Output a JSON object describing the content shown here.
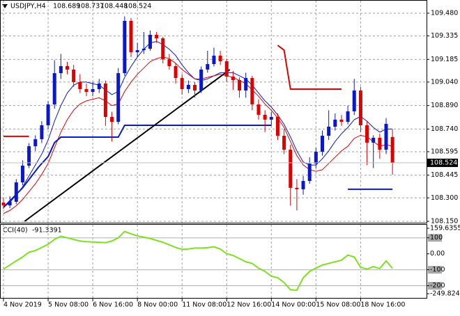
{
  "chart_data": {
    "type": "candlestick",
    "symbol": "USDJPY,H4",
    "up_color": "#0a18c8",
    "down_color": "#e00000",
    "grid": true,
    "ylim": [
      108.15,
      109.48
    ],
    "yticks": [
      {
        "value": 109.48,
        "label": "109.480"
      },
      109.335,
      109.185,
      {
        "value": 109.04,
        "label": "109.040"
      },
      {
        "value": 108.89,
        "label": "108.890"
      },
      {
        "value": 108.74,
        "label": "108.740"
      },
      108.595,
      108.445,
      {
        "value": 108.3,
        "label": "108.300"
      },
      {
        "value": 108.15,
        "label": "108.150"
      }
    ],
    "xticks": [
      {
        "value": 0,
        "label": "4 Nov 2019"
      },
      {
        "value": 7,
        "label": "5 Nov 08:00"
      },
      {
        "value": 14,
        "label": "6 Nov 16:00"
      },
      {
        "value": 21,
        "label": "8 Nov 00:00"
      },
      {
        "value": 28,
        "label": "11 Nov 08:00"
      },
      {
        "value": 35,
        "label": "12 Nov 16:00"
      },
      {
        "value": 42,
        "label": "14 Nov 00:00"
      },
      {
        "value": 49,
        "label": "15 Nov 08:00"
      },
      {
        "value": 56,
        "label": "18 Nov 16:00"
      }
    ],
    "candles": [
      [
        108.27,
        108.3,
        108.23,
        108.252
      ],
      [
        108.252,
        108.31,
        108.235,
        108.275
      ],
      [
        108.275,
        108.42,
        108.26,
        108.399
      ],
      [
        108.399,
        108.54,
        108.38,
        108.506
      ],
      [
        108.506,
        108.65,
        108.49,
        108.63
      ],
      [
        108.63,
        108.7,
        108.6,
        108.675
      ],
      [
        108.675,
        108.79,
        108.65,
        108.764
      ],
      [
        108.764,
        108.92,
        108.74,
        108.897
      ],
      [
        108.897,
        109.18,
        108.87,
        109.097
      ],
      [
        109.097,
        109.22,
        109.06,
        109.142
      ],
      [
        109.142,
        109.17,
        109.09,
        109.12
      ],
      [
        109.12,
        109.15,
        109.01,
        109.04
      ],
      [
        109.04,
        109.09,
        108.97,
        108.995
      ],
      [
        108.995,
        109.03,
        108.95,
        108.977
      ],
      [
        108.977,
        109.04,
        108.95,
        108.995
      ],
      [
        108.995,
        109.06,
        108.97,
        109.031
      ],
      [
        109.031,
        109.05,
        108.76,
        108.817
      ],
      [
        108.817,
        108.85,
        108.66,
        108.786
      ],
      [
        108.786,
        109.13,
        108.77,
        109.097
      ],
      [
        109.097,
        109.46,
        109.08,
        109.431
      ],
      [
        109.431,
        109.45,
        109.2,
        109.231
      ],
      [
        109.231,
        109.29,
        109.2,
        109.244
      ],
      [
        109.244,
        109.36,
        109.22,
        109.253
      ],
      [
        109.253,
        109.37,
        109.24,
        109.342
      ],
      [
        109.342,
        109.36,
        109.29,
        109.32
      ],
      [
        109.32,
        109.33,
        109.16,
        109.186
      ],
      [
        109.186,
        109.22,
        109.12,
        109.142
      ],
      [
        109.142,
        109.16,
        109.03,
        109.066
      ],
      [
        109.066,
        109.09,
        108.96,
        108.995
      ],
      [
        108.995,
        109.05,
        108.97,
        109.022
      ],
      [
        109.022,
        109.04,
        108.94,
        108.986
      ],
      [
        108.986,
        109.14,
        108.97,
        109.12
      ],
      [
        109.12,
        109.24,
        109.1,
        109.155
      ],
      [
        109.155,
        109.26,
        109.14,
        109.209
      ],
      [
        109.209,
        109.24,
        109.15,
        109.173
      ],
      [
        109.173,
        109.19,
        109.04,
        109.075
      ],
      [
        109.075,
        109.11,
        108.99,
        109.053
      ],
      [
        109.053,
        109.07,
        108.94,
        108.986
      ],
      [
        108.986,
        109.1,
        108.94,
        109.066
      ],
      [
        109.066,
        109.08,
        108.86,
        108.897
      ],
      [
        108.897,
        108.93,
        108.8,
        108.831
      ],
      [
        108.831,
        108.86,
        108.72,
        108.8
      ],
      [
        108.8,
        108.85,
        108.76,
        108.817
      ],
      [
        108.817,
        108.84,
        108.67,
        108.697
      ],
      [
        108.697,
        108.74,
        108.58,
        108.608
      ],
      [
        108.608,
        108.64,
        108.25,
        108.364
      ],
      [
        108.364,
        108.42,
        108.22,
        108.355
      ],
      [
        108.355,
        108.44,
        108.32,
        108.408
      ],
      [
        108.408,
        108.56,
        108.39,
        108.519
      ],
      [
        108.519,
        108.62,
        108.49,
        108.595
      ],
      [
        108.595,
        108.73,
        108.57,
        108.697
      ],
      [
        108.697,
        108.86,
        108.67,
        108.755
      ],
      [
        108.755,
        108.84,
        108.73,
        108.8
      ],
      [
        108.8,
        108.83,
        108.76,
        108.786
      ],
      [
        108.786,
        108.89,
        108.77,
        108.853
      ],
      [
        108.853,
        109.06,
        108.83,
        108.986
      ],
      [
        108.986,
        109.01,
        108.72,
        108.764
      ],
      [
        108.764,
        108.79,
        108.51,
        108.653
      ],
      [
        108.653,
        108.7,
        108.49,
        108.684
      ],
      [
        108.684,
        108.71,
        108.55,
        108.608
      ],
      [
        108.608,
        108.81,
        108.58,
        108.773
      ],
      [
        108.689,
        108.737,
        108.448,
        108.524
      ]
    ],
    "lines": [
      {
        "color": "#0a18c8",
        "width": 1,
        "values": [
          108.24,
          108.27,
          108.32,
          108.37,
          108.44,
          108.51,
          108.58,
          108.67,
          108.79,
          108.89,
          108.97,
          109.02,
          109.04,
          109.04,
          109.03,
          109.02,
          108.99,
          108.96,
          108.98,
          109.07,
          109.14,
          109.2,
          109.25,
          109.29,
          109.3,
          109.28,
          109.25,
          109.21,
          109.15,
          109.1,
          109.06,
          109.05,
          109.06,
          109.08,
          109.1,
          109.1,
          109.1,
          109.08,
          109.06,
          109.02,
          108.97,
          108.92,
          108.88,
          108.83,
          108.77,
          108.69,
          108.6,
          108.53,
          108.51,
          108.51,
          108.55,
          108.6,
          108.66,
          108.71,
          108.75,
          108.8,
          108.82,
          108.79,
          108.75,
          108.72,
          108.74,
          108.74
        ]
      },
      {
        "color": "#e00000",
        "width": 1,
        "values": [
          108.2,
          108.22,
          108.25,
          108.29,
          108.34,
          108.39,
          108.45,
          108.52,
          108.62,
          108.72,
          108.8,
          108.86,
          108.9,
          108.92,
          108.93,
          108.94,
          108.92,
          108.89,
          108.9,
          108.98,
          109.04,
          109.09,
          109.13,
          109.17,
          109.19,
          109.2,
          109.19,
          109.16,
          109.12,
          109.09,
          109.06,
          109.06,
          109.07,
          109.08,
          109.09,
          109.08,
          109.07,
          109.05,
          109.03,
          108.99,
          108.95,
          108.9,
          108.86,
          108.81,
          108.75,
          108.66,
          108.57,
          108.51,
          108.48,
          108.47,
          108.48,
          108.52,
          108.56,
          108.6,
          108.63,
          108.68,
          108.7,
          108.69,
          108.66,
          108.63,
          108.64,
          108.63
        ]
      },
      {
        "color": "#e00000",
        "width": 2,
        "x": [
          0,
          4,
          5,
          43,
          44,
          45,
          53
        ],
        "values": [
          108.693,
          108.693,
          null,
          109.275,
          109.244,
          108.995,
          108.995
        ]
      },
      {
        "color": "#0a18c8",
        "width": 2,
        "x": [
          0,
          3,
          5.5,
          7,
          8,
          9,
          18,
          19,
          42,
          43,
          54,
          61
        ],
        "values": [
          108.239,
          108.364,
          108.497,
          108.564,
          108.653,
          108.688,
          108.688,
          108.764,
          108.764,
          null,
          108.355,
          108.355
        ]
      },
      {
        "color": "#000000",
        "width": 2,
        "x": [
          3.3,
          35.5
        ],
        "values": [
          108.15,
          109.12
        ]
      }
    ],
    "indicator": {
      "type": "line",
      "label": "CCI(40)",
      "color": "#7ee01e",
      "ylim": [
        -249.8241,
        159.6355
      ],
      "yticks": [
        159.6355,
        100,
        {
          "value": 0,
          "label": "0.00"
        },
        -100,
        -200,
        -249.8241
      ],
      "values": [
        -96,
        -70,
        -44,
        -20,
        10,
        20,
        40,
        60,
        90,
        110,
        100,
        90,
        80,
        76,
        74,
        72,
        70,
        80,
        100,
        140,
        125,
        112,
        104,
        96,
        84,
        72,
        56,
        40,
        28,
        30,
        36,
        36,
        38,
        44,
        30,
        0,
        -10,
        -30,
        -50,
        -60,
        -90,
        -110,
        -140,
        -150,
        -180,
        -225,
        -228,
        -150,
        -110,
        -90,
        -70,
        -60,
        -50,
        -40,
        -8,
        -20,
        -84,
        -96,
        -80,
        -92,
        -44,
        -91.3391
      ]
    }
  }
}
